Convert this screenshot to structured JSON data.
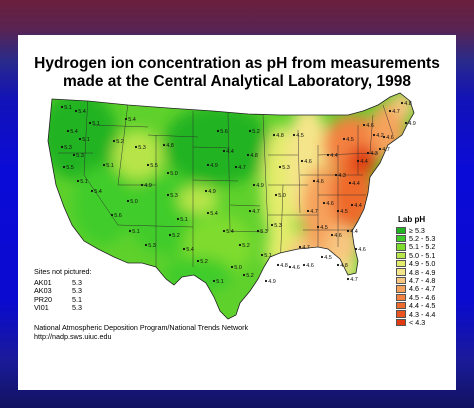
{
  "title": {
    "line1": "Hydrogen ion concentration as pH from measurements",
    "line2": "made at the Central Analytical Laboratory, 1998"
  },
  "legend": {
    "title": "Lab pH",
    "items": [
      {
        "label": "≥ 5.3",
        "color": "#21b321"
      },
      {
        "label": "5.2 - 5.3",
        "color": "#3fcc2a"
      },
      {
        "label": "5.1 - 5.2",
        "color": "#7fdc2e"
      },
      {
        "label": "5.0 - 5.1",
        "color": "#b7e54a"
      },
      {
        "label": "4.9 - 5.0",
        "color": "#e3ec6a"
      },
      {
        "label": "4.8 - 4.9",
        "color": "#f5e58a"
      },
      {
        "label": "4.7 - 4.8",
        "color": "#f7c680"
      },
      {
        "label": "4.6 - 4.7",
        "color": "#f6a25c"
      },
      {
        "label": "4.5 - 4.6",
        "color": "#f38140"
      },
      {
        "label": "4.4 - 4.5",
        "color": "#ee6a2c"
      },
      {
        "label": "4.3 - 4.4",
        "color": "#e9541e"
      },
      {
        "label": "< 4.3",
        "color": "#e03a10"
      }
    ]
  },
  "not_pictured": {
    "title": "Sites not pictured:",
    "sites": [
      {
        "site": "AK01",
        "value": "5.3"
      },
      {
        "site": "AK03",
        "value": "5.3"
      },
      {
        "site": "PR20",
        "value": "5.1"
      },
      {
        "site": "VI01",
        "value": "5.3"
      }
    ]
  },
  "credits": {
    "line1": "National Atmospheric Deposition Program/National Trends Network",
    "line2": "http://nadp.sws.uiuc.edu"
  },
  "site_values": [
    "5.1",
    "5.4",
    "5.1",
    "5.4",
    "5.1",
    "5.3",
    "5.3",
    "5.5",
    "5.1",
    "5.4",
    "5.1",
    "5.2",
    "5.4",
    "5.3",
    "5.5",
    "4.9",
    "5.0",
    "5.6",
    "5.1",
    "5.3",
    "4.8",
    "5.0",
    "5.3",
    "5.1",
    "5.2",
    "5.4",
    "5.2",
    "4.9",
    "4.9",
    "5.4",
    "5.6",
    "4.4",
    "4.7",
    "5.4",
    "5.2",
    "5.0",
    "5.1",
    "5.2",
    "4.8",
    "4.9",
    "4.7",
    "5.3",
    "5.1",
    "5.2",
    "4.8",
    "5.3",
    "5.0",
    "5.3",
    "4.5",
    "4.6",
    "4.6",
    "4.4",
    "4.5",
    "4.4",
    "4.3",
    "4.2",
    "4.4",
    "4.3",
    "4.6",
    "4.5",
    "4.4",
    "4.7",
    "4.5",
    "4.6",
    "4.4",
    "4.6",
    "4.7",
    "4.6",
    "4.6",
    "4.5",
    "4.8",
    "4.9",
    "4.7",
    "4.8",
    "4.9",
    "4.6",
    "4.7",
    "4.6",
    "4.8",
    "4.7"
  ]
}
